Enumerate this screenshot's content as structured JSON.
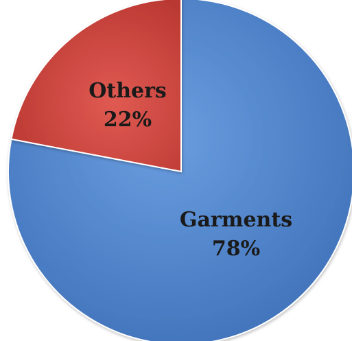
{
  "chart_data": {
    "type": "pie",
    "title": "",
    "slices": [
      {
        "label": "Garments",
        "value": 78,
        "display": "78%",
        "color": "#4a7fc7"
      },
      {
        "label": "Others",
        "value": 22,
        "display": "22%",
        "color": "#c9413b"
      }
    ],
    "legend": "none",
    "labels_on_slices": true
  }
}
